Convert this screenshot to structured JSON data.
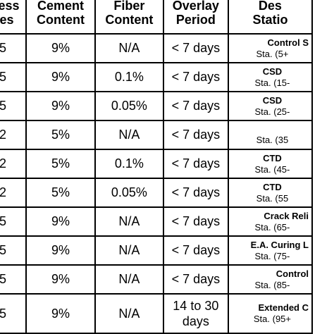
{
  "headers": {
    "thickness": [
      "tness",
      "nes"
    ],
    "cement": [
      "Cement",
      "Content"
    ],
    "fiber": [
      "Fiber",
      "Content"
    ],
    "overlay": [
      "Overlay",
      "Period"
    ],
    "description": [
      "Des",
      "Statio"
    ]
  },
  "rows": [
    {
      "thickness": "5",
      "cement": "9%",
      "fiber": "N/A",
      "period": "< 7 days",
      "desc_name": "Control S",
      "desc_sta": "Sta. (5+"
    },
    {
      "thickness": "5",
      "cement": "9%",
      "fiber": "0.1%",
      "period": "< 7 days",
      "desc_name": "CSD",
      "desc_sta": "Sta. (15-"
    },
    {
      "thickness": "5",
      "cement": "9%",
      "fiber": "0.05%",
      "period": "< 7 days",
      "desc_name": "CSD",
      "desc_sta": "Sta. (25-"
    },
    {
      "thickness": "2",
      "cement": "5%",
      "fiber": "N/A",
      "period": "< 7 days",
      "desc_name": "",
      "desc_sta": "Sta. (35"
    },
    {
      "thickness": "2",
      "cement": "5%",
      "fiber": "0.1%",
      "period": "< 7 days",
      "desc_name": "CTD",
      "desc_sta": "Sta. (45-"
    },
    {
      "thickness": "2",
      "cement": "5%",
      "fiber": "0.05%",
      "period": "< 7 days",
      "desc_name": "CTD",
      "desc_sta": "Sta. (55"
    },
    {
      "thickness": "5",
      "cement": "9%",
      "fiber": "N/A",
      "period": "< 7 days",
      "desc_name": "Crack Reli",
      "desc_sta": "Sta. (65-"
    },
    {
      "thickness": "5",
      "cement": "9%",
      "fiber": "N/A",
      "period": "< 7 days",
      "desc_name": "E.A. Curing L",
      "desc_sta": "Sta. (75-"
    },
    {
      "thickness": "5",
      "cement": "9%",
      "fiber": "N/A",
      "period": "< 7 days",
      "desc_name": "Control",
      "desc_sta": "Sta. (85-"
    },
    {
      "thickness": "5",
      "cement": "9%",
      "fiber": "N/A",
      "period": "14 to 30",
      "period2": "days",
      "desc_name": "Extended C",
      "desc_sta": "Sta. (95+"
    }
  ]
}
